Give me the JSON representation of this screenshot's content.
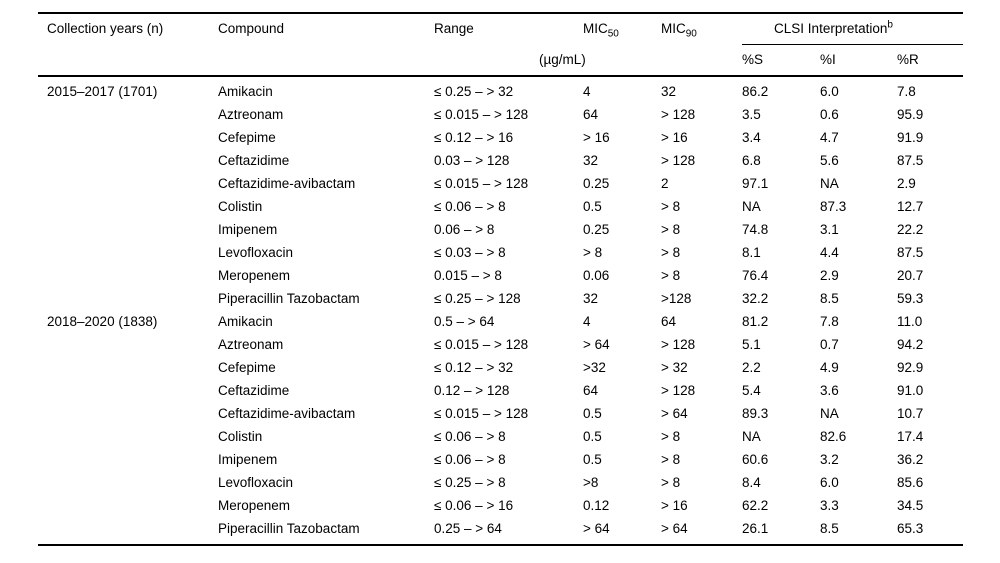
{
  "table": {
    "headers": {
      "collection_years": "Collection years (n)",
      "compound": "Compound",
      "range": "Range",
      "mic_label": "MIC",
      "mic50_sub": "50",
      "mic90_sub": "90",
      "clsi_label": "CLSI Interpretation",
      "clsi_footnote": "b",
      "unit": "(µg/mL)",
      "pct_s": "%S",
      "pct_i": "%I",
      "pct_r": "%R"
    },
    "groups": [
      {
        "label": "2015–2017 (1701)",
        "rows": [
          {
            "compound": "Amikacin",
            "range": "≤ 0.25 – > 32",
            "mic50": "4",
            "mic90": "32",
            "s": "86.2",
            "i": "6.0",
            "r": "7.8"
          },
          {
            "compound": "Aztreonam",
            "range": "≤ 0.015 – > 128",
            "mic50": "64",
            "mic90": "> 128",
            "s": "3.5",
            "i": "0.6",
            "r": "95.9"
          },
          {
            "compound": "Cefepime",
            "range": "≤ 0.12 – > 16",
            "mic50": "> 16",
            "mic90": "> 16",
            "s": "3.4",
            "i": "4.7",
            "r": "91.9"
          },
          {
            "compound": "Ceftazidime",
            "range": "0.03 – > 128",
            "mic50": "32",
            "mic90": "> 128",
            "s": "6.8",
            "i": "5.6",
            "r": "87.5"
          },
          {
            "compound": "Ceftazidime-avibactam",
            "range": "≤ 0.015 – > 128",
            "mic50": "0.25",
            "mic90": "2",
            "s": "97.1",
            "i": "NA",
            "r": "2.9"
          },
          {
            "compound": "Colistin",
            "range": "≤ 0.06 – > 8",
            "mic50": "0.5",
            "mic90": "> 8",
            "s": "NA",
            "i": "87.3",
            "r": "12.7"
          },
          {
            "compound": "Imipenem",
            "range": "0.06 – > 8",
            "mic50": "0.25",
            "mic90": "> 8",
            "s": "74.8",
            "i": "3.1",
            "r": "22.2"
          },
          {
            "compound": "Levofloxacin",
            "range": "≤ 0.03 – > 8",
            "mic50": "> 8",
            "mic90": "> 8",
            "s": "8.1",
            "i": "4.4",
            "r": "87.5"
          },
          {
            "compound": "Meropenem",
            "range": "0.015 – > 8",
            "mic50": "0.06",
            "mic90": "> 8",
            "s": "76.4",
            "i": "2.9",
            "r": "20.7"
          },
          {
            "compound": "Piperacillin Tazobactam",
            "range": "≤ 0.25 – > 128",
            "mic50": "32",
            "mic90": ">128",
            "s": "32.2",
            "i": "8.5",
            "r": "59.3"
          }
        ]
      },
      {
        "label": "2018–2020 (1838)",
        "rows": [
          {
            "compound": "Amikacin",
            "range": "0.5 – > 64",
            "mic50": "4",
            "mic90": "64",
            "s": "81.2",
            "i": "7.8",
            "r": "11.0"
          },
          {
            "compound": "Aztreonam",
            "range": "≤ 0.015 – > 128",
            "mic50": "> 64",
            "mic90": "> 128",
            "s": "5.1",
            "i": "0.7",
            "r": "94.2"
          },
          {
            "compound": "Cefepime",
            "range": "≤ 0.12 – > 32",
            "mic50": ">32",
            "mic90": "> 32",
            "s": "2.2",
            "i": "4.9",
            "r": "92.9"
          },
          {
            "compound": "Ceftazidime",
            "range": "0.12 – > 128",
            "mic50": "64",
            "mic90": "> 128",
            "s": "5.4",
            "i": "3.6",
            "r": "91.0"
          },
          {
            "compound": "Ceftazidime-avibactam",
            "range": "≤ 0.015 – > 128",
            "mic50": "0.5",
            "mic90": "> 64",
            "s": "89.3",
            "i": "NA",
            "r": "10.7"
          },
          {
            "compound": "Colistin",
            "range": "≤ 0.06 – > 8",
            "mic50": "0.5",
            "mic90": "> 8",
            "s": "NA",
            "i": "82.6",
            "r": "17.4"
          },
          {
            "compound": "Imipenem",
            "range": "≤ 0.06 – > 8",
            "mic50": "0.5",
            "mic90": "> 8",
            "s": "60.6",
            "i": "3.2",
            "r": "36.2"
          },
          {
            "compound": "Levofloxacin",
            "range": "≤ 0.25 – > 8",
            "mic50": ">8",
            "mic90": "> 8",
            "s": "8.4",
            "i": "6.0",
            "r": "85.6"
          },
          {
            "compound": "Meropenem",
            "range": "≤ 0.06 – > 16",
            "mic50": "0.12",
            "mic90": "> 16",
            "s": "62.2",
            "i": "3.3",
            "r": "34.5"
          },
          {
            "compound": "Piperacillin Tazobactam",
            "range": "0.25 – > 64",
            "mic50": "> 64",
            "mic90": "> 64",
            "s": "26.1",
            "i": "8.5",
            "r": "65.3"
          }
        ]
      }
    ]
  }
}
